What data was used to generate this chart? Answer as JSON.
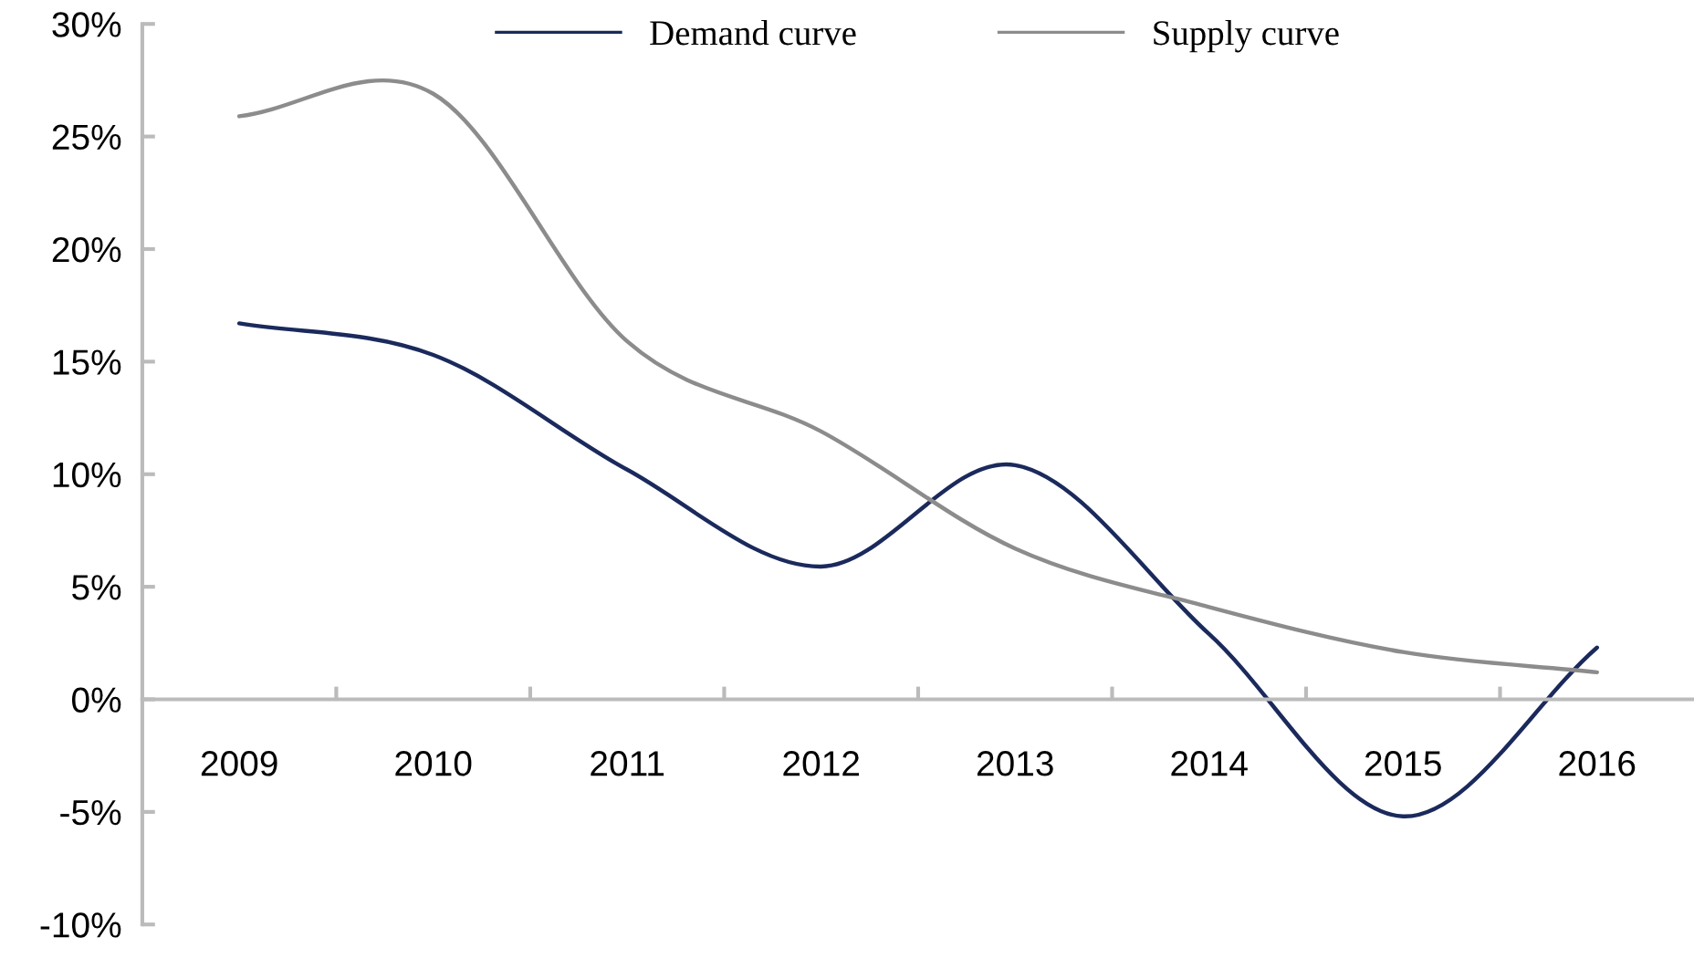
{
  "chart_data": {
    "type": "line",
    "categories": [
      "2009",
      "2010",
      "2011",
      "2012",
      "2013",
      "2014",
      "2015",
      "2016"
    ],
    "series": [
      {
        "name": "Demand curve",
        "color": "#1b2a5c",
        "values": [
          16.7,
          15.3,
          10.2,
          5.9,
          10.4,
          2.9,
          -5.2,
          2.3
        ]
      },
      {
        "name": "Supply curve",
        "color": "#8c8c8c",
        "values": [
          25.9,
          26.9,
          15.9,
          11.9,
          6.7,
          4.1,
          2.1,
          1.2
        ]
      }
    ],
    "ylim": [
      -10,
      30
    ],
    "yticks": [
      {
        "value": -10,
        "label": "-10%"
      },
      {
        "value": -5,
        "label": "-5%"
      },
      {
        "value": 0,
        "label": "0%"
      },
      {
        "value": 5,
        "label": "5%"
      },
      {
        "value": 10,
        "label": "10%"
      },
      {
        "value": 15,
        "label": "15%"
      },
      {
        "value": 20,
        "label": "20%"
      },
      {
        "value": 25,
        "label": "25%"
      },
      {
        "value": 30,
        "label": "30%"
      }
    ],
    "grid": false,
    "legend": "top",
    "marker": "none",
    "line_style": "solid"
  }
}
